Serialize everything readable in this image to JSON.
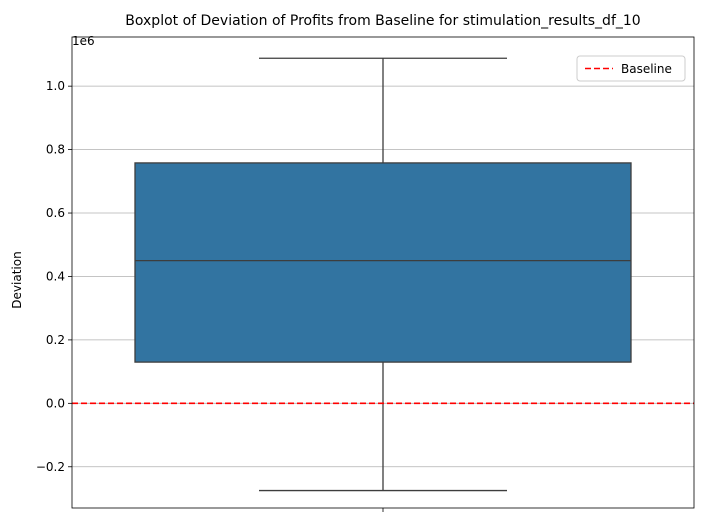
{
  "chart_data": {
    "type": "boxplot",
    "title": "Boxplot of Deviation of Profits from Baseline for stimulation_results_df_10",
    "xlabel": "",
    "ylabel": "Deviation",
    "y_offset_label": "1e6",
    "y_scale_factor": 1000000,
    "ylim": [
      -330000,
      1155000
    ],
    "yticks": [
      -200000,
      0,
      200000,
      400000,
      600000,
      800000,
      1000000
    ],
    "ytick_labels": [
      "−0.2",
      "0.0",
      "0.2",
      "0.4",
      "0.6",
      "0.8",
      "1.0"
    ],
    "grid": {
      "y": true,
      "x": false
    },
    "box": {
      "whisker_low": -275000,
      "q1": 130000,
      "median": 450000,
      "q3": 758000,
      "whisker_high": 1088000,
      "fill_color": "#3274a1",
      "line_color": "#3d3d3d"
    },
    "baseline": {
      "value": 0,
      "label": "Baseline",
      "color": "#ff0000",
      "style": "dashed"
    },
    "legend": {
      "position": "top-right",
      "entries": [
        "Baseline"
      ]
    }
  }
}
